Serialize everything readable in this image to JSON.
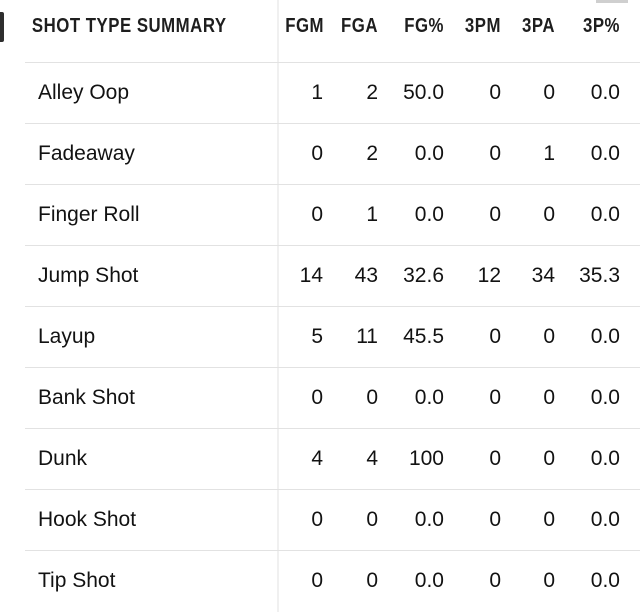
{
  "colors": {
    "accent": "#37699b",
    "text": "#121212",
    "header_text": "#1e1e1e",
    "row_divider": "#e2e2e2",
    "column_divider": "#f0f0f0"
  },
  "table": {
    "header": {
      "label": "SHOT TYPE SUMMARY",
      "columns": [
        "FGM",
        "FGA",
        "FG%",
        "3PM",
        "3PA",
        "3P%"
      ]
    },
    "rows": [
      {
        "label": "Alley Oop",
        "cells": [
          {
            "v": "1",
            "hl": true
          },
          {
            "v": "2",
            "hl": true
          },
          {
            "v": "50.0",
            "hl": false
          },
          {
            "v": "0",
            "hl": false
          },
          {
            "v": "0",
            "hl": false
          },
          {
            "v": "0.0",
            "hl": false
          }
        ]
      },
      {
        "label": "Fadeaway",
        "cells": [
          {
            "v": "0",
            "hl": false
          },
          {
            "v": "2",
            "hl": true
          },
          {
            "v": "0.0",
            "hl": false
          },
          {
            "v": "0",
            "hl": false
          },
          {
            "v": "1",
            "hl": true
          },
          {
            "v": "0.0",
            "hl": false
          }
        ]
      },
      {
        "label": "Finger Roll",
        "cells": [
          {
            "v": "0",
            "hl": false
          },
          {
            "v": "1",
            "hl": true
          },
          {
            "v": "0.0",
            "hl": false
          },
          {
            "v": "0",
            "hl": false
          },
          {
            "v": "0",
            "hl": false
          },
          {
            "v": "0.0",
            "hl": false
          }
        ]
      },
      {
        "label": "Jump Shot",
        "cells": [
          {
            "v": "14",
            "hl": true
          },
          {
            "v": "43",
            "hl": true
          },
          {
            "v": "32.6",
            "hl": false
          },
          {
            "v": "12",
            "hl": true
          },
          {
            "v": "34",
            "hl": true
          },
          {
            "v": "35.3",
            "hl": false
          }
        ]
      },
      {
        "label": "Layup",
        "cells": [
          {
            "v": "5",
            "hl": true
          },
          {
            "v": "11",
            "hl": true
          },
          {
            "v": "45.5",
            "hl": false
          },
          {
            "v": "0",
            "hl": false
          },
          {
            "v": "0",
            "hl": false
          },
          {
            "v": "0.0",
            "hl": false
          }
        ]
      },
      {
        "label": "Bank Shot",
        "cells": [
          {
            "v": "0",
            "hl": false
          },
          {
            "v": "0",
            "hl": false
          },
          {
            "v": "0.0",
            "hl": false
          },
          {
            "v": "0",
            "hl": false
          },
          {
            "v": "0",
            "hl": false
          },
          {
            "v": "0.0",
            "hl": false
          }
        ]
      },
      {
        "label": "Dunk",
        "cells": [
          {
            "v": "4",
            "hl": true
          },
          {
            "v": "4",
            "hl": true
          },
          {
            "v": "100",
            "hl": false
          },
          {
            "v": "0",
            "hl": false
          },
          {
            "v": "0",
            "hl": false
          },
          {
            "v": "0.0",
            "hl": false
          }
        ]
      },
      {
        "label": "Hook Shot",
        "cells": [
          {
            "v": "0",
            "hl": false
          },
          {
            "v": "0",
            "hl": false
          },
          {
            "v": "0.0",
            "hl": false
          },
          {
            "v": "0",
            "hl": false
          },
          {
            "v": "0",
            "hl": false
          },
          {
            "v": "0.0",
            "hl": false
          }
        ]
      },
      {
        "label": "Tip Shot",
        "cells": [
          {
            "v": "0",
            "hl": false
          },
          {
            "v": "0",
            "hl": false
          },
          {
            "v": "0.0",
            "hl": false
          },
          {
            "v": "0",
            "hl": false
          },
          {
            "v": "0",
            "hl": false
          },
          {
            "v": "0.0",
            "hl": false
          }
        ]
      }
    ]
  }
}
